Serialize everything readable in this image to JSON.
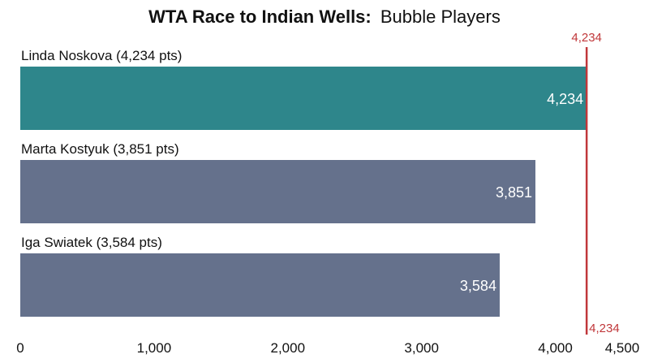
{
  "chart_data": {
    "type": "bar",
    "orientation": "horizontal",
    "title_bold": "WTA Race to Indian Wells:",
    "title_rest": "Bubble Players",
    "categories": [
      "Linda Noskova (4,234 pts)",
      "Marta Kostyuk (3,851 pts)",
      "Iga Swiatek (3,584 pts)"
    ],
    "values": [
      4234,
      3851,
      3584
    ],
    "value_labels": [
      "4,234",
      "3,851",
      "3,584"
    ],
    "bar_colors": [
      "#2e868b",
      "#65718c",
      "#65718c"
    ],
    "xlim": [
      0,
      4500
    ],
    "x_ticks": [
      0,
      1000,
      2000,
      3000,
      4000,
      4500
    ],
    "x_tick_labels": [
      "0",
      "1,000",
      "2,000",
      "3,000",
      "4,000",
      "4,500"
    ],
    "grid": false,
    "reference_line": {
      "value": 4234,
      "label_top": "4,234",
      "label_bottom": "4,234",
      "color": "#c0373a"
    }
  }
}
